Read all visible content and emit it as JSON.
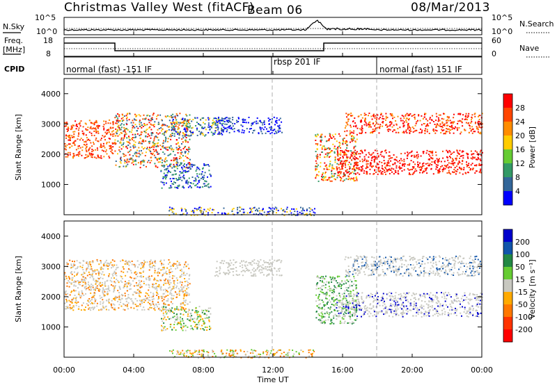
{
  "header": {
    "title": "Christmas Valley West (fitACF)",
    "beam": "Beam 06",
    "date": "08/Mar/2013"
  },
  "top_panel": {
    "left_label": "N.Sky",
    "right_label": "N.Search",
    "left_ticks": [
      "10^5",
      "10^0"
    ],
    "right_ticks": [
      "10^5",
      "10^0"
    ]
  },
  "freq_panel": {
    "left_label_1": "Freq.",
    "left_label_2": "[MHz]",
    "right_label": "Nave",
    "left_ticks": [
      "18",
      "8"
    ],
    "right_ticks": [
      "60",
      "0"
    ]
  },
  "cpid_panel": {
    "label": "CPID",
    "modes": [
      "normal (fast) -151 IF",
      "rbsp 201 IF",
      "normal (fast) 151 IF"
    ]
  },
  "power_panel": {
    "ylabel": "Slant Range [km]",
    "colorbar_label": "Power [dB]",
    "colorbar_ticks": [
      "28",
      "24",
      "20",
      "16",
      "12",
      "8",
      "4"
    ],
    "colorbar_colors": [
      "#ff0000",
      "#ff4500",
      "#ff8c00",
      "#ffcc00",
      "#66cc33",
      "#339966",
      "#336699",
      "#0000ff"
    ]
  },
  "velocity_panel": {
    "ylabel": "Slant Range [km]",
    "colorbar_label": "Velocity [m s⁻¹]",
    "colorbar_ticks": [
      "200",
      "100",
      "50",
      "15",
      "-15",
      "-50",
      "-100",
      "-200"
    ],
    "colorbar_colors": [
      "#0000cc",
      "#1155aa",
      "#228844",
      "#66cc33",
      "#c8c8c0",
      "#ffaa00",
      "#ff7700",
      "#ff3300",
      "#ff0000"
    ]
  },
  "x_axis": {
    "label": "Time UT",
    "ticks": [
      "00:00",
      "04:00",
      "08:00",
      "12:00",
      "16:00",
      "20:00",
      "00:00"
    ]
  },
  "chart_data": [
    {
      "type": "heatmap",
      "title": "Christmas Valley West (fitACF)",
      "ylabel": "Slant Range [km]",
      "xlabel": "Time UT",
      "ylim": [
        0,
        4500
      ],
      "yticks": [
        "1000",
        "2000",
        "3000",
        "4000"
      ],
      "xticks": [
        "00:00",
        "04:00",
        "08:00",
        "12:00",
        "16:00",
        "20:00",
        "00:00"
      ],
      "colorbar": {
        "label": "Power [dB]",
        "ticks": [
          "28",
          "24",
          "20",
          "16",
          "12",
          "8",
          "4"
        ]
      }
    },
    {
      "type": "heatmap",
      "ylabel": "Slant Range [km]",
      "xlabel": "Time UT",
      "ylim": [
        0,
        4500
      ],
      "yticks": [
        "1000",
        "2000",
        "3000",
        "4000"
      ],
      "xticks": [
        "00:00",
        "04:00",
        "08:00",
        "12:00",
        "16:00",
        "20:00",
        "00:00"
      ],
      "colorbar": {
        "label": "Velocity [m s⁻¹]",
        "ticks": [
          "200",
          "100",
          "50",
          "15",
          "-15",
          "-50",
          "-100",
          "-200"
        ]
      }
    }
  ]
}
